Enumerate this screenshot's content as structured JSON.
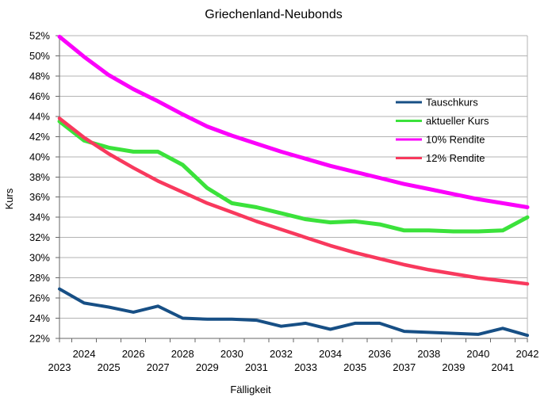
{
  "title": "Griechenland-Neubonds",
  "chart_data": {
    "type": "line",
    "title": "Griechenland-Neubonds",
    "xlabel": "Fälligkeit",
    "ylabel": "Kurs",
    "x": [
      2023,
      2024,
      2025,
      2026,
      2027,
      2028,
      2029,
      2030,
      2031,
      2032,
      2033,
      2034,
      2035,
      2036,
      2037,
      2038,
      2039,
      2040,
      2041,
      2042
    ],
    "ylim": [
      22,
      52
    ],
    "ytick_step": 2,
    "ytick_suffix": "%",
    "grid": true,
    "legend_position": "inside-right",
    "colors": {
      "background": "#FFFFFF",
      "grid": "#B3B3B3",
      "axis": "#666666",
      "text": "#000000"
    },
    "series": [
      {
        "name": "Tauschkurs",
        "color": "#174F85",
        "values": [
          26.9,
          25.5,
          25.1,
          24.6,
          25.2,
          24.0,
          23.9,
          23.9,
          23.8,
          23.2,
          23.5,
          22.9,
          23.5,
          23.5,
          22.7,
          22.6,
          22.5,
          22.4,
          23.0,
          22.3
        ]
      },
      {
        "name": "aktueller Kurs",
        "color": "#3BE23B",
        "values": [
          43.5,
          41.6,
          40.9,
          40.5,
          40.5,
          39.2,
          36.9,
          35.4,
          35.0,
          34.4,
          33.8,
          33.5,
          33.6,
          33.3,
          32.7,
          32.7,
          32.6,
          32.6,
          32.7,
          34.0
        ]
      },
      {
        "name": "10% Rendite",
        "color": "#FB00FB",
        "values": [
          51.9,
          49.9,
          48.1,
          46.7,
          45.5,
          44.2,
          43.0,
          42.1,
          41.3,
          40.5,
          39.8,
          39.1,
          38.5,
          37.9,
          37.3,
          36.8,
          36.3,
          35.8,
          35.4,
          35.0
        ]
      },
      {
        "name": "12% Rendite",
        "color": "#F8395D",
        "values": [
          43.8,
          41.9,
          40.3,
          38.9,
          37.6,
          36.5,
          35.4,
          34.5,
          33.6,
          32.8,
          32.0,
          31.2,
          30.5,
          29.9,
          29.3,
          28.8,
          28.4,
          28.0,
          27.7,
          27.4
        ]
      }
    ]
  }
}
